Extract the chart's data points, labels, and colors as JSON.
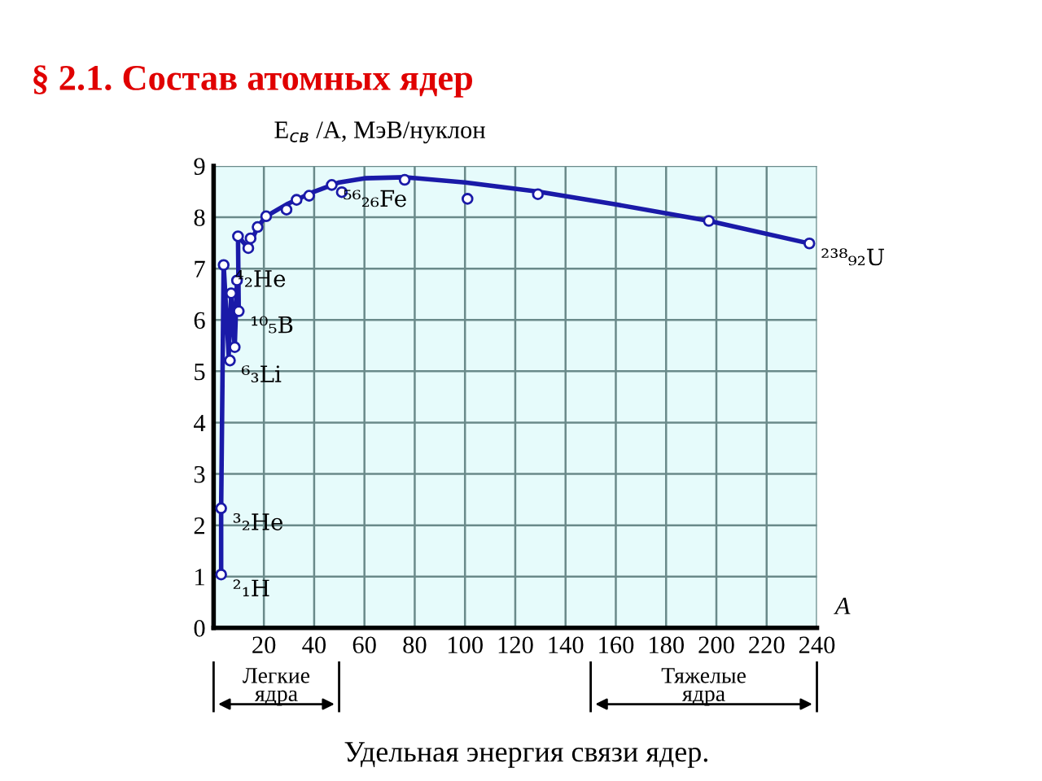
{
  "chart_data": {
    "type": "scatter",
    "title": "§ 2.1. Состав атомных ядер",
    "ylabel": "E$_{св}$ /A, МэВ/нуклон",
    "xlabel": "A",
    "xlim": [
      0,
      240
    ],
    "xticks": [
      20,
      40,
      60,
      80,
      100,
      120,
      140,
      160,
      180,
      200,
      220,
      240
    ],
    "ylim": [
      0,
      9
    ],
    "yticks": [
      0,
      1,
      2,
      3,
      4,
      5,
      6,
      7,
      8,
      9
    ],
    "grid": true,
    "legend": false,
    "series": [
      {
        "type": "line",
        "color": "#1a1aa8",
        "marker": "none",
        "line_style": "solid",
        "x": [
          3,
          3,
          4,
          6,
          7,
          8.4,
          9.3,
          10,
          9.7,
          13.8,
          17.5,
          20.9,
          29,
          40,
          50,
          60,
          76,
          100,
          129,
          160,
          197,
          237
        ],
        "values": [
          1.04,
          2.33,
          7.07,
          5.3,
          6.5,
          5.47,
          6.77,
          6.17,
          7.63,
          7.4,
          7.81,
          8.02,
          8.25,
          8.5,
          8.68,
          8.76,
          8.78,
          8.68,
          8.5,
          8.25,
          7.93,
          7.49
        ]
      },
      {
        "color": "#1a1aa8",
        "marker": "circle",
        "x": [
          3,
          3,
          4,
          6.5,
          7,
          8.4,
          9.3,
          10,
          9.7,
          13.8,
          14.7,
          17.5,
          20.9,
          29,
          33,
          38,
          47,
          51,
          76,
          101,
          129,
          197,
          237
        ],
        "values": [
          1.04,
          2.33,
          7.07,
          5.21,
          6.52,
          5.47,
          6.77,
          6.17,
          7.63,
          7.4,
          7.59,
          7.81,
          8.02,
          8.15,
          8.34,
          8.42,
          8.63,
          8.49,
          8.73,
          8.36,
          8.45,
          7.93,
          7.49
        ]
      }
    ],
    "annotations": [
      {
        "text": "⁴₂He",
        "x": 4,
        "y": 7.07
      },
      {
        "text": "⁵⁶₂₆Fe",
        "x": 47,
        "y": 8.63
      },
      {
        "text": "²³⁸₉₂U",
        "x": 237,
        "y": 7.49
      },
      {
        "text": "¹⁰₅B",
        "x": 10,
        "y": 6.17
      },
      {
        "text": "⁶₃Li",
        "x": 6.5,
        "y": 5.21
      },
      {
        "text": "³₂He",
        "x": 3,
        "y": 2.33
      },
      {
        "text": "²₁H",
        "x": 3,
        "y": 1.04
      },
      "Легкие\nядра",
      "Тяжелые\nядра",
      "Удельная энергия связи ядер."
    ]
  }
}
